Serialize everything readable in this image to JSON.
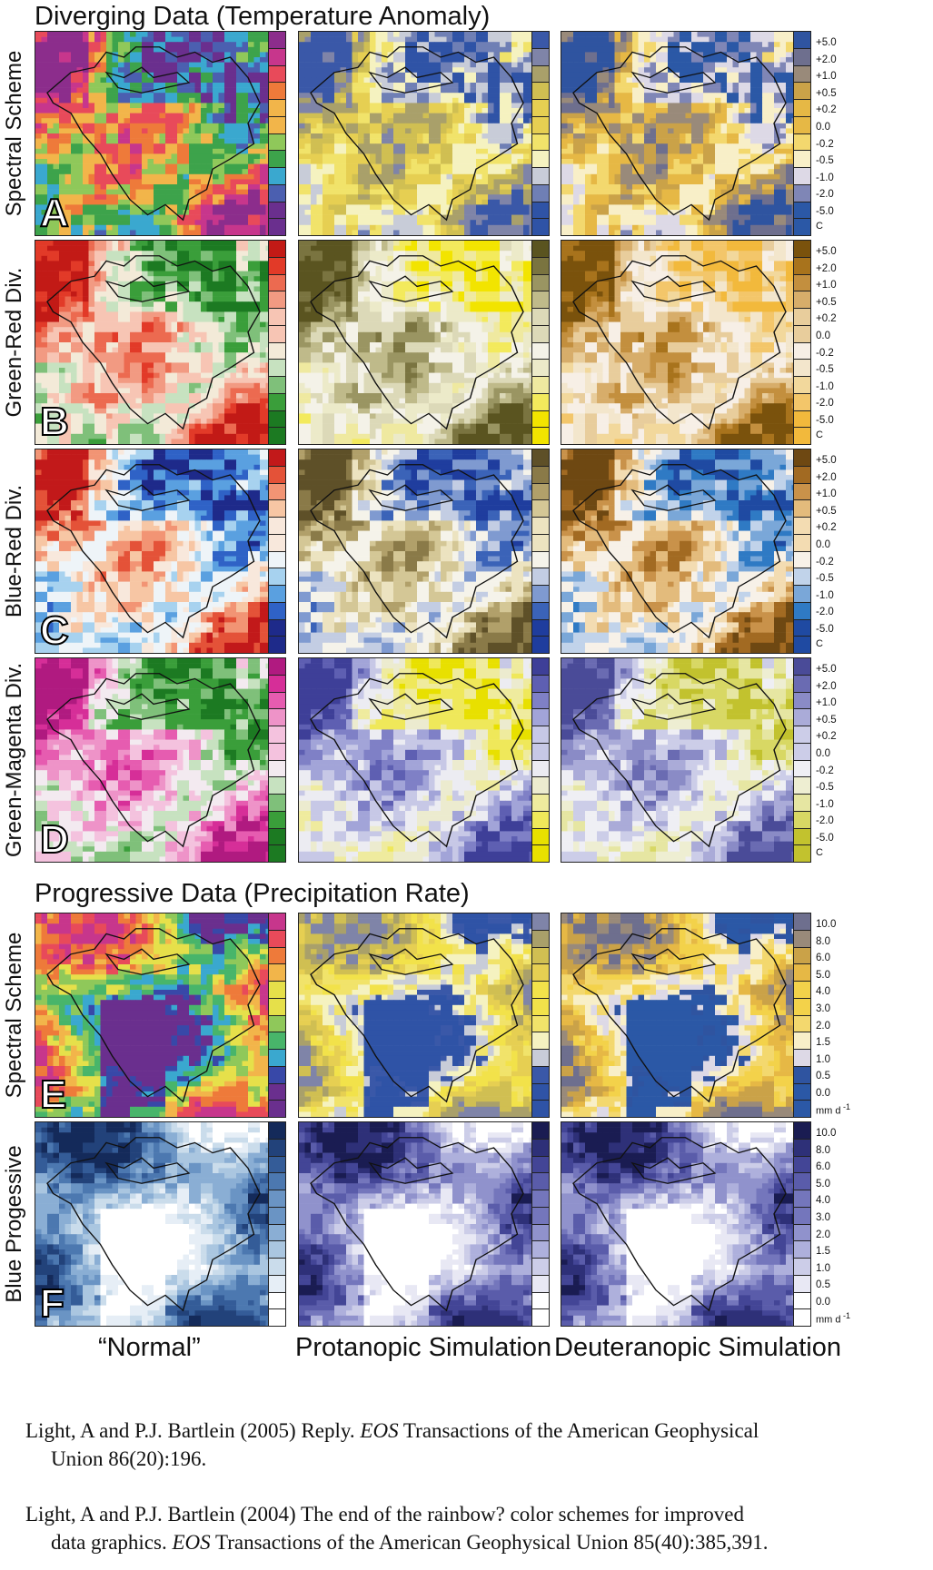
{
  "sections": {
    "diverging_title": "Diverging Data (Temperature Anomaly)",
    "progressive_title": "Progressive Data (Precipitation Rate)"
  },
  "rows": [
    {
      "label": "Spectral Scheme",
      "letter": "A",
      "base": "div",
      "normal": [
        "#6a2f8e",
        "#4b5fb0",
        "#3aa8cf",
        "#3da34b",
        "#8fc85a",
        "#f2b54a",
        "#ee7a3a",
        "#e84a5a",
        "#c7368c",
        "#8c2d8c"
      ],
      "protan": [
        "#2f53a6",
        "#6f7fb5",
        "#c8ccd8",
        "#f5f2c0",
        "#f1e36a",
        "#e6cf52",
        "#d0bf52",
        "#a9a06a",
        "#7f84a8",
        "#3a58a8"
      ],
      "deutan": [
        "#2b58a6",
        "#7f86b6",
        "#ddd9e6",
        "#f8efc8",
        "#f3d86e",
        "#e6b845",
        "#caa248",
        "#998a7a",
        "#6e6f8e",
        "#2f54a0"
      ],
      "ticks": [
        "+5.0",
        "+2.0",
        "+1.0",
        "+0.5",
        "+0.2",
        "0.0",
        "-0.2",
        "-0.5",
        "-1.0",
        "-2.0",
        "-5.0"
      ],
      "unit": "C"
    },
    {
      "label": "Green-Red Div.",
      "letter": "B",
      "base": "div",
      "normal": [
        "#1c7a22",
        "#3a9e3a",
        "#7fc07a",
        "#c7e2c0",
        "#f3ead8",
        "#f7c5b4",
        "#f29a82",
        "#ec6a50",
        "#e23a28",
        "#c21a16"
      ],
      "protan": [
        "#f2e400",
        "#f3ea5c",
        "#efe9a0",
        "#eceac9",
        "#f4f2e8",
        "#dcd9b8",
        "#bfba8a",
        "#9a9562",
        "#7a7440",
        "#5a5420"
      ],
      "deutan": [
        "#f2b93c",
        "#f3c66a",
        "#f2d89c",
        "#f3e6cc",
        "#f7efe6",
        "#e8cd9c",
        "#d7ad6a",
        "#c38f3e",
        "#a8731c",
        "#7a520c"
      ],
      "ticks": [
        "+5.0",
        "+2.0",
        "+1.0",
        "+0.5",
        "+0.2",
        "0.0",
        "-0.2",
        "-0.5",
        "-1.0",
        "-2.0",
        "-5.0"
      ],
      "unit": "C"
    },
    {
      "label": "Blue-Red Div.",
      "letter": "C",
      "base": "div",
      "normal": [
        "#1e2a8a",
        "#2f62c6",
        "#5aa0e0",
        "#a7d2ef",
        "#eef4f8",
        "#f8e8dc",
        "#f7c6a4",
        "#f29474",
        "#e45238",
        "#c2191a"
      ],
      "protan": [
        "#1f3d9e",
        "#3b63b8",
        "#7f9ad0",
        "#c3cde3",
        "#f5f3ea",
        "#ece3c0",
        "#d4c796",
        "#b1a06a",
        "#8a7a48",
        "#5e5028"
      ],
      "deutan": [
        "#1f4aa2",
        "#2f7ac4",
        "#7aa7d8",
        "#c1d3ea",
        "#f7f1e8",
        "#f3dcb2",
        "#e3bb7c",
        "#c9924a",
        "#a26a22",
        "#6e4812"
      ],
      "ticks": [
        "+5.0",
        "+2.0",
        "+1.0",
        "+0.5",
        "+0.2",
        "0.0",
        "-0.2",
        "-0.5",
        "-1.0",
        "-2.0",
        "-5.0"
      ],
      "unit": "C"
    },
    {
      "label": "Green-Magenta Div.",
      "letter": "D",
      "base": "div",
      "normal": [
        "#1c7a22",
        "#3a9e3a",
        "#7fc07a",
        "#c7e2c0",
        "#f3eaf0",
        "#f4c2de",
        "#ee93c8",
        "#e65cb0",
        "#d62e98",
        "#b01a80"
      ],
      "protan": [
        "#e8e000",
        "#efe85a",
        "#efeb9e",
        "#ecebcf",
        "#ececf2",
        "#c7c8e6",
        "#a2a4d8",
        "#7f80c6",
        "#5e5fb2",
        "#3e3f98"
      ],
      "deutan": [
        "#c2c22e",
        "#d8d864",
        "#e6e6a2",
        "#eeeed2",
        "#efeff4",
        "#cccde8",
        "#aaabd8",
        "#8a8bc6",
        "#6a6bb2",
        "#4a4b98"
      ],
      "ticks": [
        "+5.0",
        "+2.0",
        "+1.0",
        "+0.5",
        "+0.2",
        "0.0",
        "-0.2",
        "-0.5",
        "-1.0",
        "-2.0",
        "-5.0"
      ],
      "unit": "C"
    },
    {
      "label": "Spectral Scheme",
      "letter": "E",
      "base": "prog",
      "normal": [
        "#6a2f8e",
        "#3848a8",
        "#3aa8cf",
        "#48b56a",
        "#8fc85a",
        "#e6e04a",
        "#f2b54a",
        "#ee7a3a",
        "#e84a5a",
        "#c7368c"
      ],
      "protan": [
        "#2f53a6",
        "#3a58a8",
        "#c8ccd8",
        "#f5f2c0",
        "#f1e36a",
        "#f2e24a",
        "#e6cf52",
        "#d0bf52",
        "#a9a06a",
        "#7f84a8"
      ],
      "deutan": [
        "#2b58a6",
        "#2f54a0",
        "#ddd9e6",
        "#f8efc8",
        "#f3d86e",
        "#f3d24a",
        "#e6b845",
        "#caa248",
        "#998a7a",
        "#6e6f8e"
      ],
      "ticks": [
        "10.0",
        "8.0",
        "6.0",
        "5.0",
        "4.0",
        "3.0",
        "2.0",
        "1.5",
        "1.0",
        "0.5",
        "0.0"
      ],
      "unit": "mm d",
      "unit_sup": "-1"
    },
    {
      "label": "Blue Progessive",
      "letter": "F",
      "base": "prog",
      "normal": [
        "#ffffff",
        "#e6eef6",
        "#cadceb",
        "#aac6e0",
        "#8aaed4",
        "#6a94c4",
        "#4c78b0",
        "#345c98",
        "#22427a",
        "#142a5a"
      ],
      "protan": [
        "#ffffff",
        "#e8e8f4",
        "#cccde8",
        "#aeb0dc",
        "#9092cc",
        "#7476bc",
        "#5a5caa",
        "#434596",
        "#2e3078",
        "#1a1c52"
      ],
      "deutan": [
        "#ffffff",
        "#e8e8f4",
        "#cccde8",
        "#aeb0dc",
        "#9092cc",
        "#7476bc",
        "#5a5caa",
        "#434596",
        "#2e3078",
        "#1a1c52"
      ],
      "ticks": [
        "10.0",
        "8.0",
        "6.0",
        "5.0",
        "4.0",
        "3.0",
        "2.0",
        "1.5",
        "1.0",
        "0.5",
        "0.0"
      ],
      "unit": "mm d",
      "unit_sup": "-1"
    }
  ],
  "column_labels": {
    "normal": "“Normal”",
    "protan": "Protanopic Simulation",
    "deutan": "Deuteranopic Simulation"
  },
  "references": [
    {
      "a": "Light, A and P.J. Bartlein (2005)  Reply.  ",
      "i": "EOS",
      "b": " Transactions of the American Geophysical",
      "c": "Union 86(20):196."
    },
    {
      "a": "Light, A and P.J. Bartlein (2004)  The end of the rainbow? color schemes for improved",
      "i": "",
      "b": "",
      "c": "data graphics.  ",
      "ci": "EOS",
      "cb": " Transactions of the American Geophysical Union 85(40):385,391."
    }
  ]
}
